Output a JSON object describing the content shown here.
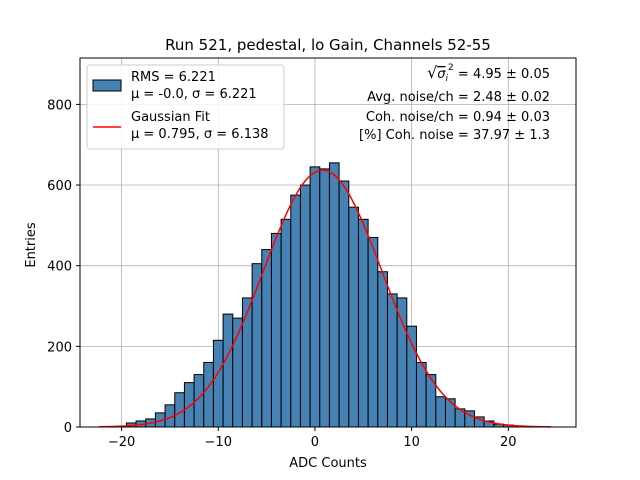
{
  "chart_data": {
    "type": "bar",
    "title": "Run 521, pedestal, lo Gain, Channels 52-55",
    "xlabel": "ADC Counts",
    "ylabel": "Entries",
    "xlim": [
      -24.3,
      27
    ],
    "ylim": [
      0,
      915
    ],
    "xticks": [
      -20,
      -10,
      0,
      10,
      20
    ],
    "yticks": [
      0,
      200,
      400,
      600,
      800
    ],
    "grid": true,
    "legend_position": "top-left",
    "bin_width": 1,
    "bins": [
      {
        "x": -19,
        "y": 10
      },
      {
        "x": -18,
        "y": 15
      },
      {
        "x": -17,
        "y": 20
      },
      {
        "x": -16,
        "y": 35
      },
      {
        "x": -15,
        "y": 55
      },
      {
        "x": -14,
        "y": 85
      },
      {
        "x": -13,
        "y": 110
      },
      {
        "x": -12,
        "y": 130
      },
      {
        "x": -11,
        "y": 160
      },
      {
        "x": -10,
        "y": 215
      },
      {
        "x": -9,
        "y": 280
      },
      {
        "x": -8,
        "y": 270
      },
      {
        "x": -7,
        "y": 320
      },
      {
        "x": -6,
        "y": 405
      },
      {
        "x": -5,
        "y": 440
      },
      {
        "x": -4,
        "y": 480
      },
      {
        "x": -3,
        "y": 515
      },
      {
        "x": -2,
        "y": 575
      },
      {
        "x": -1,
        "y": 600
      },
      {
        "x": 0,
        "y": 645
      },
      {
        "x": 1,
        "y": 640
      },
      {
        "x": 2,
        "y": 655
      },
      {
        "x": 3,
        "y": 610
      },
      {
        "x": 4,
        "y": 545
      },
      {
        "x": 5,
        "y": 515
      },
      {
        "x": 6,
        "y": 470
      },
      {
        "x": 7,
        "y": 385
      },
      {
        "x": 8,
        "y": 330
      },
      {
        "x": 9,
        "y": 320
      },
      {
        "x": 10,
        "y": 250
      },
      {
        "x": 11,
        "y": 160
      },
      {
        "x": 12,
        "y": 130
      },
      {
        "x": 13,
        "y": 75
      },
      {
        "x": 14,
        "y": 70
      },
      {
        "x": 15,
        "y": 45
      },
      {
        "x": 16,
        "y": 40
      },
      {
        "x": 17,
        "y": 25
      },
      {
        "x": 18,
        "y": 15
      },
      {
        "x": 19,
        "y": 7
      },
      {
        "x": 20,
        "y": 5
      }
    ],
    "fit": {
      "type": "gaussian",
      "mu": 0.795,
      "sigma": 6.138,
      "amplitude": 637,
      "x_range": [
        -22.3,
        24.4
      ]
    },
    "series": [
      {
        "name": "RMS = 6.221",
        "name_line2": "μ = -0.0, σ = 6.221",
        "color": "#4682b4"
      },
      {
        "name": "Gaussian Fit",
        "name_line2": "μ = 0.795, σ = 6.138",
        "color": "#ff0000"
      }
    ],
    "annotations": {
      "sqrt_prefix": "√",
      "sqrt_sigma": "σ",
      "sqrt_sub": "i",
      "sqrt_sup": "2",
      "sqrt_value": " = 4.95 ± 0.05",
      "avg_noise": "Avg. noise/ch = 2.48 ± 0.02",
      "coh_noise": "Coh. noise/ch = 0.94 ± 0.03",
      "coh_pct": "[%] Coh. noise = 37.97 ± 1.3"
    }
  }
}
